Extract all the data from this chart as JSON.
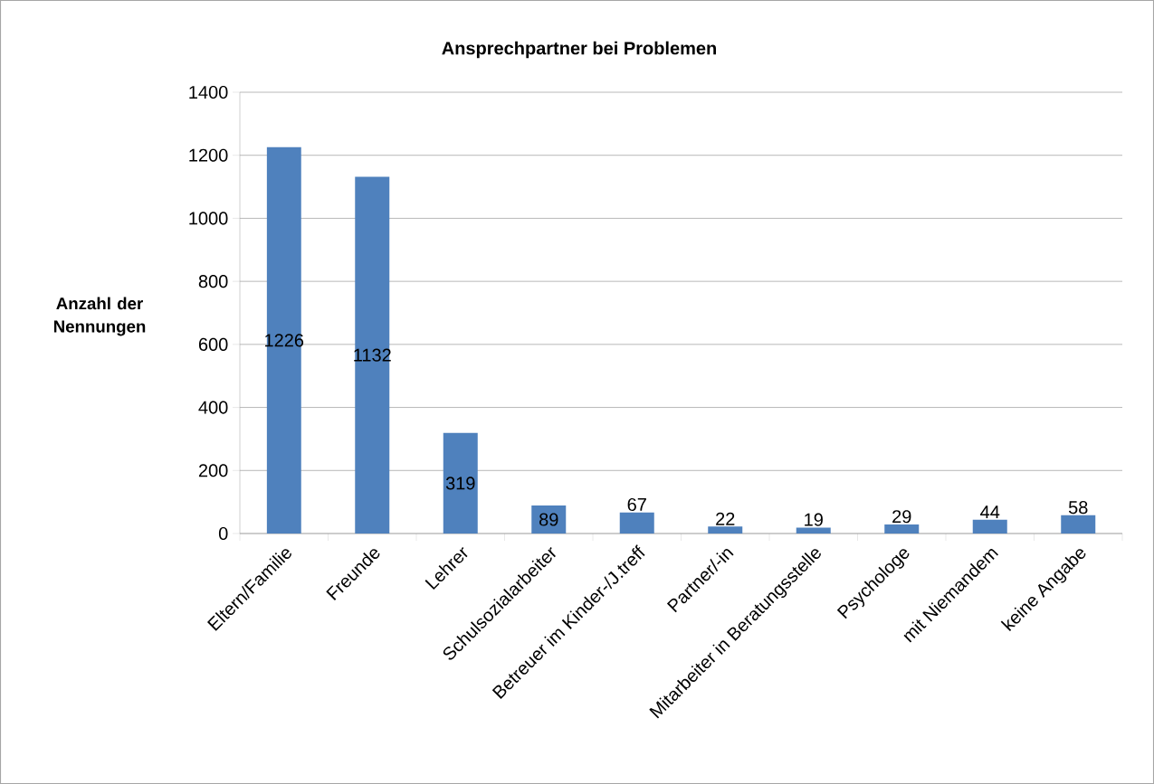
{
  "chart_data": {
    "type": "bar",
    "title": "Ansprechpartner bei Problemen",
    "ylabel": "Anzahl der Nennungen",
    "categories": [
      "Eltern/Familie",
      "Freunde",
      "Lehrer",
      "Schulsozialarbeiter",
      "Betreuer im Kinder-/J.treff",
      "Partner/-in",
      "Mitarbeiter in Beratungsstelle",
      "Psychologe",
      "mit Niemandem",
      "keine Angabe"
    ],
    "values": [
      1226,
      1132,
      319,
      89,
      67,
      22,
      19,
      29,
      44,
      58
    ],
    "color": "#4f81bd",
    "ylim": [
      0,
      1400
    ],
    "yticks": [
      0,
      200,
      400,
      600,
      800,
      1000,
      1200,
      1400
    ],
    "grid": "y",
    "data_labels": true
  }
}
